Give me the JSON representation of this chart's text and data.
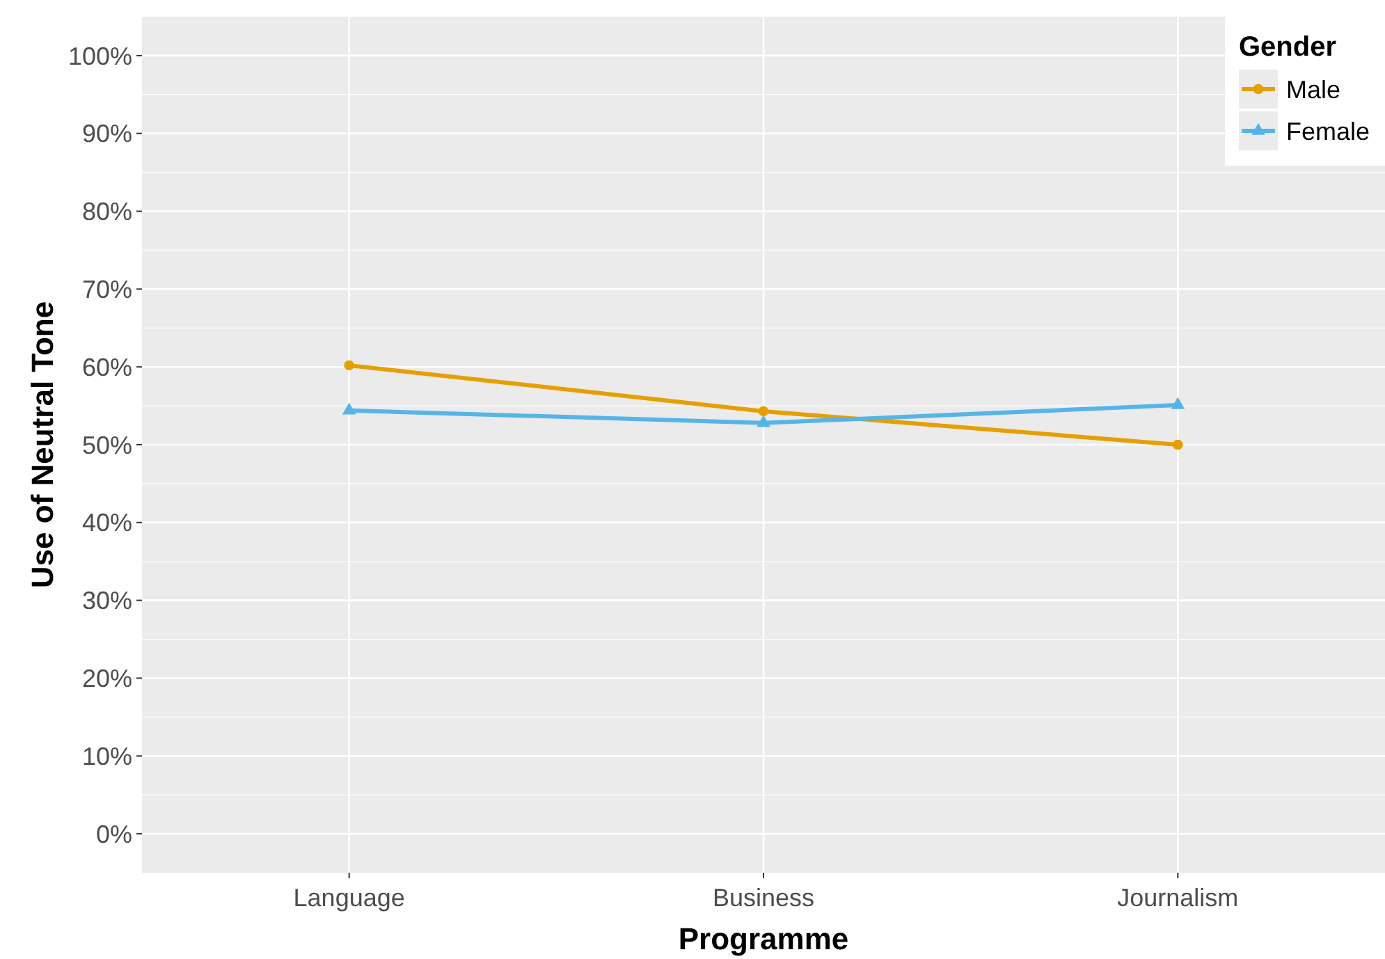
{
  "chart_data": {
    "type": "line",
    "xlabel": "Programme",
    "ylabel": "Use of Neutral Tone",
    "legend_title": "Gender",
    "categories": [
      "Language",
      "Business",
      "Journalism"
    ],
    "series": [
      {
        "name": "Male",
        "color": "#e69f00",
        "values": [
          60.2,
          54.3,
          50.0
        ],
        "marker": "circle"
      },
      {
        "name": "Female",
        "color": "#56b4e9",
        "values": [
          54.4,
          52.8,
          55.1
        ],
        "marker": "triangle"
      }
    ],
    "ylim": [
      -5,
      105
    ],
    "yticks": [
      {
        "value": 0,
        "label": "0%"
      },
      {
        "value": 10,
        "label": "10%"
      },
      {
        "value": 20,
        "label": "20%"
      },
      {
        "value": 30,
        "label": "30%"
      },
      {
        "value": 40,
        "label": "40%"
      },
      {
        "value": 50,
        "label": "50%"
      },
      {
        "value": 60,
        "label": "60%"
      },
      {
        "value": 70,
        "label": "70%"
      },
      {
        "value": 80,
        "label": "80%"
      },
      {
        "value": 90,
        "label": "90%"
      },
      {
        "value": 100,
        "label": "100%"
      }
    ],
    "grid": true,
    "legend": "top right"
  }
}
